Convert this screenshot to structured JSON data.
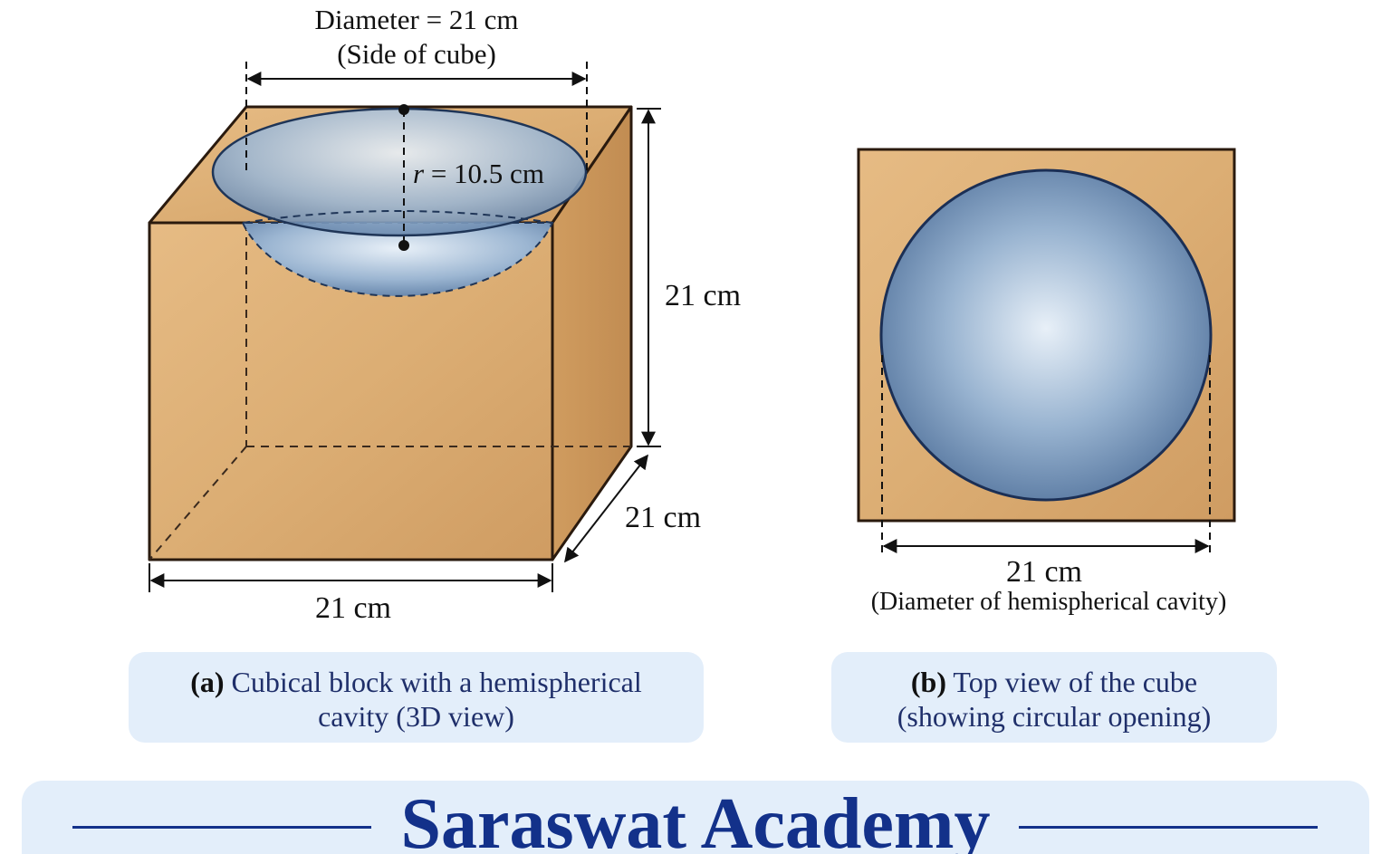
{
  "figure_a": {
    "diameter_label": "Diameter = 21 cm",
    "diameter_note": "(Side of cube)",
    "radius_symbol": "r",
    "radius_value": "= 10.5 cm",
    "height_label": "21 cm",
    "depth_label": "21 cm",
    "width_label": "21 cm"
  },
  "figure_b": {
    "width_label": "21 cm",
    "width_note": "(Diameter of hemispherical cavity)"
  },
  "caption_a": {
    "label": "(a)",
    "lines": [
      "Cubical block with a hemispherical",
      "cavity (3D view)"
    ]
  },
  "caption_b": {
    "label": "(b)",
    "lines": [
      "Top view of the cube",
      "(showing circular opening)"
    ]
  },
  "footer": {
    "title": "Saraswat Academy"
  }
}
